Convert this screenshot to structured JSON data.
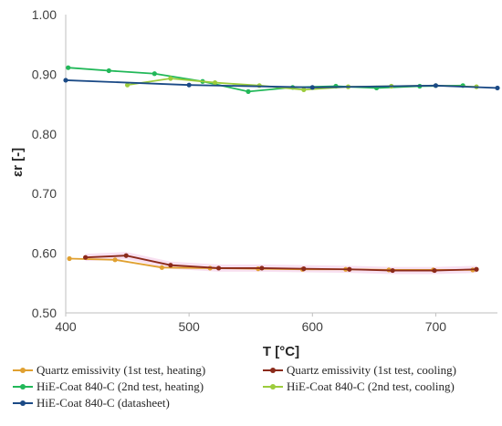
{
  "chart_data": {
    "type": "line",
    "xlabel": "T [°C]",
    "ylabel": "εr [-]",
    "xlim": [
      400,
      750
    ],
    "ylim": [
      0.5,
      1.0
    ],
    "x_ticks": [
      "400",
      "500",
      "600",
      "700"
    ],
    "y_ticks": [
      "0.50",
      "0.60",
      "0.70",
      "0.80",
      "0.90",
      "1.00"
    ],
    "grid": false,
    "legend_position": "bottom",
    "series": [
      {
        "name": "Quartz emissivity (1st test, heating)",
        "color": "#e0a030",
        "marker": true,
        "shade": false,
        "points": [
          [
            403,
            0.591
          ],
          [
            440,
            0.589
          ],
          [
            478,
            0.576
          ],
          [
            517,
            0.575
          ],
          [
            556,
            0.574
          ],
          [
            592,
            0.573
          ],
          [
            627,
            0.573
          ],
          [
            662,
            0.572
          ],
          [
            698,
            0.572
          ],
          [
            730,
            0.572
          ]
        ]
      },
      {
        "name": "Quartz emissivity (1st test, cooling)",
        "color": "#8b2a1a",
        "marker": true,
        "shade": true,
        "points": [
          [
            416,
            0.593
          ],
          [
            449,
            0.596
          ],
          [
            485,
            0.58
          ],
          [
            524,
            0.575
          ],
          [
            559,
            0.575
          ],
          [
            593,
            0.574
          ],
          [
            630,
            0.573
          ],
          [
            665,
            0.571
          ],
          [
            699,
            0.571
          ],
          [
            733,
            0.573
          ]
        ]
      },
      {
        "name": "HiE-Coat 840-C (2nd test, heating)",
        "color": "#22b859",
        "marker": true,
        "shade": false,
        "points": [
          [
            402,
            0.911
          ],
          [
            435,
            0.906
          ],
          [
            472,
            0.901
          ],
          [
            511,
            0.888
          ],
          [
            548,
            0.871
          ],
          [
            584,
            0.878
          ],
          [
            619,
            0.88
          ],
          [
            652,
            0.877
          ],
          [
            687,
            0.88
          ],
          [
            722,
            0.881
          ]
        ]
      },
      {
        "name": "HiE-Coat 840-C (2nd test, cooling)",
        "color": "#9ccc3c",
        "marker": true,
        "shade": false,
        "points": [
          [
            450,
            0.882
          ],
          [
            485,
            0.893
          ],
          [
            521,
            0.886
          ],
          [
            557,
            0.881
          ],
          [
            593,
            0.874
          ],
          [
            629,
            0.879
          ],
          [
            664,
            0.88
          ],
          [
            700,
            0.881
          ],
          [
            733,
            0.879
          ]
        ]
      },
      {
        "name": "HiE-Coat 840-C (datasheet)",
        "color": "#1b4a86",
        "marker": true,
        "shade": false,
        "points": [
          [
            400,
            0.89
          ],
          [
            500,
            0.882
          ],
          [
            600,
            0.878
          ],
          [
            700,
            0.881
          ],
          [
            750,
            0.877
          ]
        ]
      }
    ]
  }
}
